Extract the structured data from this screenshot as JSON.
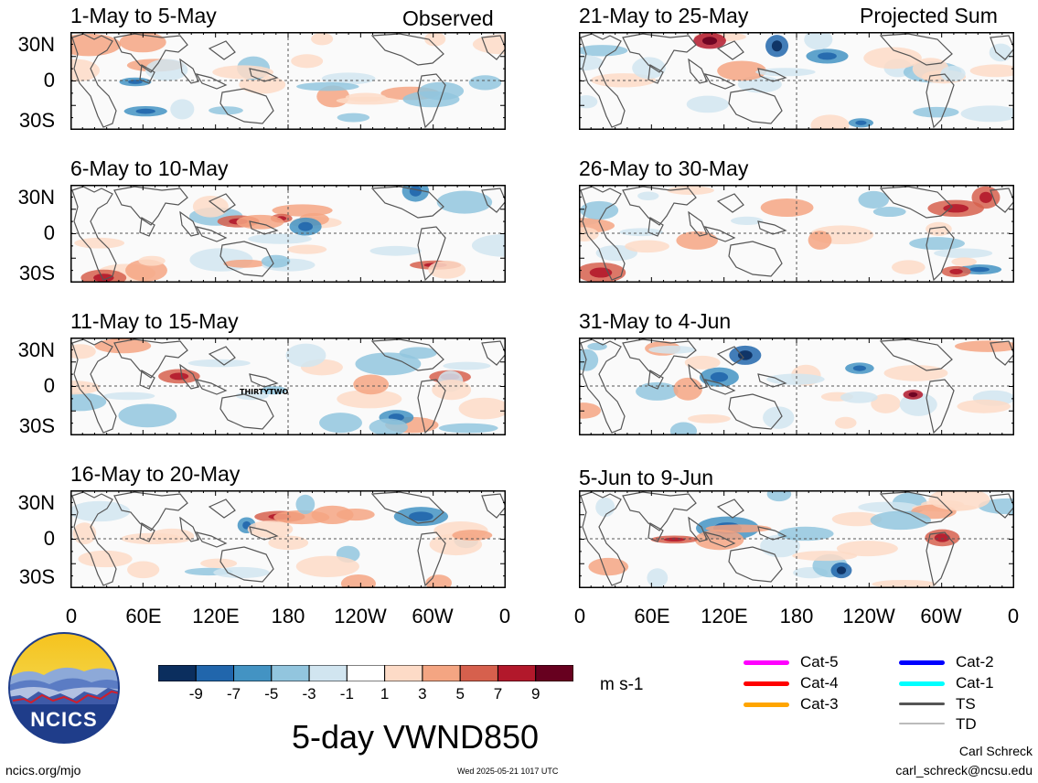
{
  "header": {
    "left_label": "Observed",
    "right_label": "Projected Sum"
  },
  "panels": [
    {
      "title": "1-May to 5-May",
      "storm": ""
    },
    {
      "title": "6-May to 10-May",
      "storm": ""
    },
    {
      "title": "11-May to 15-May",
      "storm": "THIRTYTWO"
    },
    {
      "title": "16-May to 20-May",
      "storm": ""
    },
    {
      "title": "21-May to 25-May",
      "storm": ""
    },
    {
      "title": "26-May to 30-May",
      "storm": ""
    },
    {
      "title": "31-May to 4-Jun",
      "storm": ""
    },
    {
      "title": "5-Jun to 9-Jun",
      "storm": ""
    }
  ],
  "axes": {
    "y_ticks": [
      "30N",
      "0",
      "30S"
    ],
    "x_ticks": [
      "0",
      "60E",
      "120E",
      "180",
      "120W",
      "60W",
      "0"
    ]
  },
  "colorbar": {
    "colors": [
      "#0b2e5e",
      "#2166ac",
      "#4393c3",
      "#92c5de",
      "#d1e5f0",
      "#ffffff",
      "#fddbc7",
      "#f4a582",
      "#d6604d",
      "#b2182b",
      "#67001f"
    ],
    "labels": [
      "-9",
      "-7",
      "-5",
      "-3",
      "-1",
      "1",
      "3",
      "5",
      "7",
      "9"
    ],
    "units": "m s-1"
  },
  "storm_legend": [
    {
      "label": "Cat-5",
      "color": "#ff00ff"
    },
    {
      "label": "Cat-4",
      "color": "#ff0000"
    },
    {
      "label": "Cat-3",
      "color": "#ffa500"
    },
    {
      "label": "Cat-2",
      "color": "#0000ff"
    },
    {
      "label": "Cat-1",
      "color": "#00ffff"
    },
    {
      "label": "TS",
      "color": "#555555"
    },
    {
      "label": "TD",
      "color": "#bbbbbb"
    }
  ],
  "footer": {
    "title": "5-day VWND850",
    "logo_text": "NCICS",
    "url": "ncics.org/mjo",
    "timestamp": "Wed 2025-05-21 1017 UTC",
    "author": "Carl Schreck",
    "email": "carl_schreck@ncsu.edu"
  }
}
